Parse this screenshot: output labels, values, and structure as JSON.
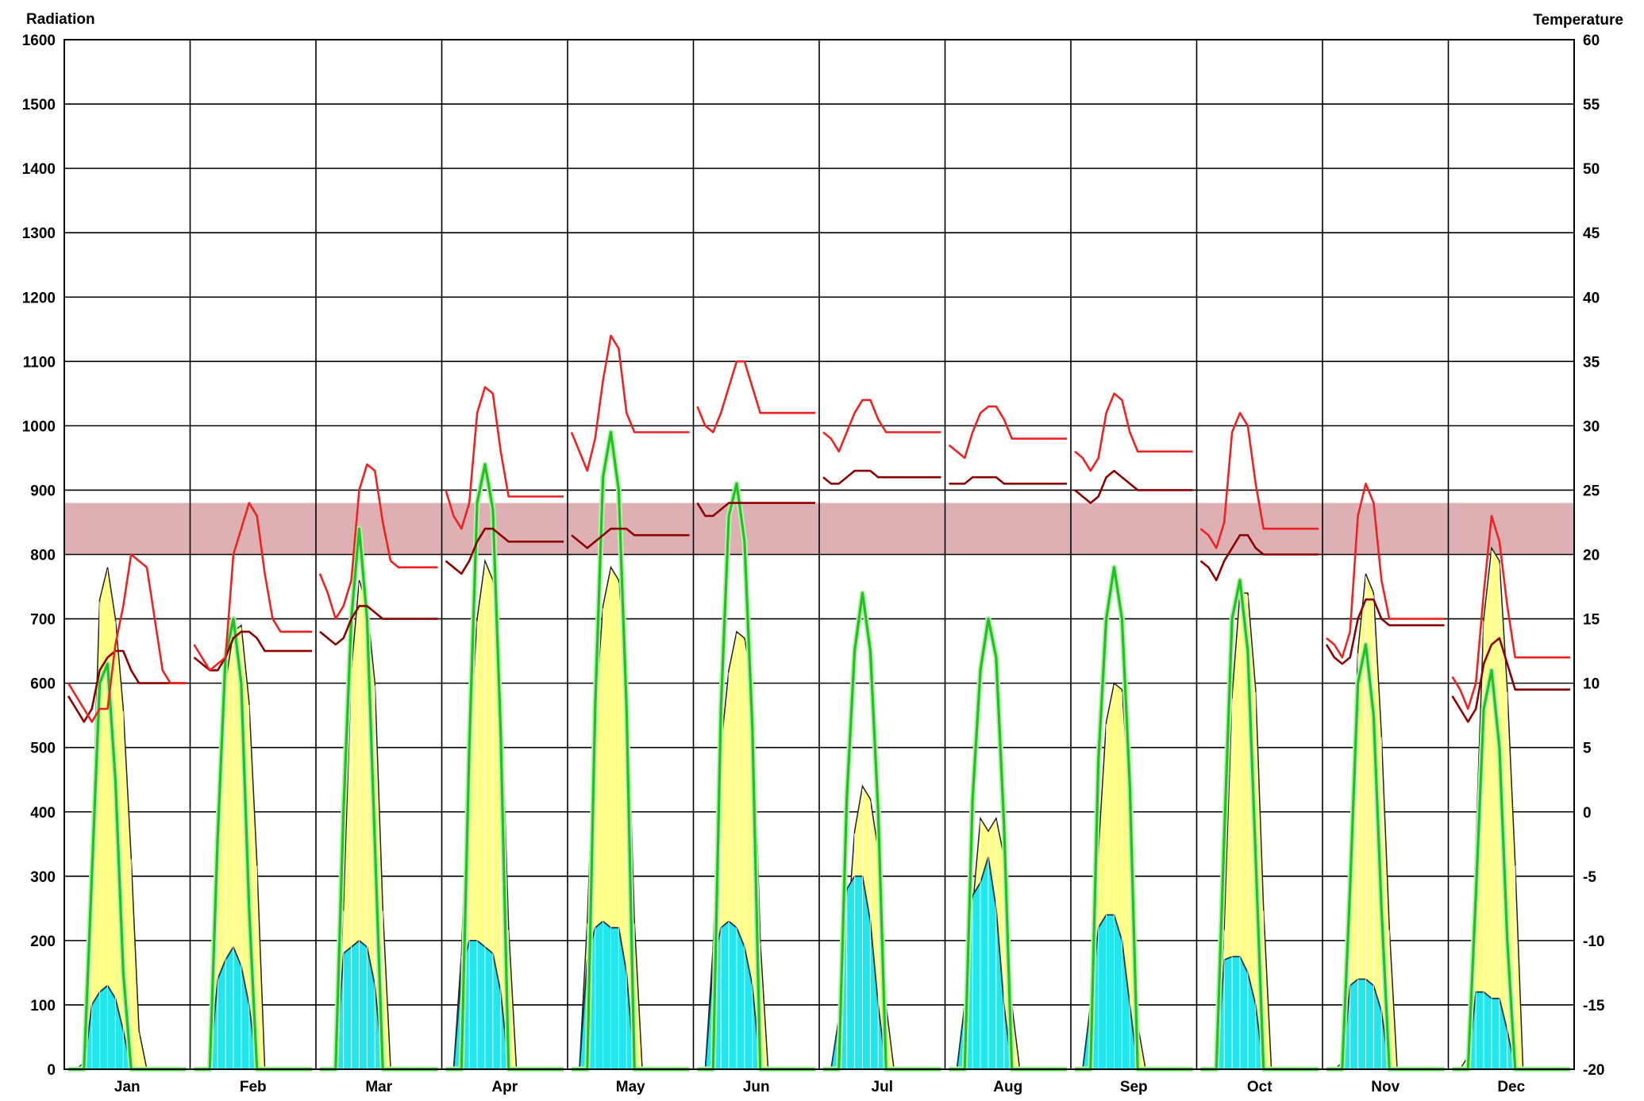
{
  "chart_data": {
    "type": "area",
    "left_axis": {
      "title": "Radiation",
      "min": 0,
      "max": 1600,
      "step": 100
    },
    "right_axis": {
      "title": "Temperature",
      "min": -20,
      "max": 60,
      "step": 5
    },
    "months": [
      "Jan",
      "Feb",
      "Mar",
      "Apr",
      "May",
      "Jun",
      "Jul",
      "Aug",
      "Sep",
      "Oct",
      "Nov",
      "Dec"
    ],
    "grid": true,
    "comfort_band": {
      "min": 20,
      "max": 24,
      "color": "#dfb0b3"
    },
    "colors": {
      "direct_radiation": "#ffff88",
      "diffuse_radiation": "#22e6ee",
      "global_radiation_line": "#22c022",
      "max_temperature": "#ee2222",
      "avg_temperature": "#8b0000"
    },
    "hours": [
      5,
      6,
      7,
      8,
      9,
      10,
      11,
      12,
      13,
      14,
      15,
      16,
      17,
      18,
      19,
      20
    ],
    "series": [
      {
        "name": "direct_radiation",
        "values": [
          [
            0,
            0,
            10,
            350,
            730,
            780,
            700,
            560,
            330,
            60,
            0,
            0,
            0,
            0,
            0,
            0
          ],
          [
            0,
            0,
            0,
            350,
            600,
            680,
            690,
            570,
            320,
            0,
            0,
            0,
            0,
            0,
            0,
            0
          ],
          [
            0,
            0,
            0,
            250,
            620,
            760,
            720,
            600,
            250,
            0,
            0,
            0,
            0,
            0,
            0,
            0
          ],
          [
            0,
            0,
            180,
            500,
            700,
            790,
            760,
            600,
            220,
            0,
            0,
            0,
            0,
            0,
            0,
            0
          ],
          [
            0,
            0,
            230,
            550,
            720,
            780,
            760,
            620,
            230,
            0,
            0,
            0,
            0,
            0,
            0,
            0
          ],
          [
            0,
            0,
            190,
            500,
            620,
            680,
            670,
            600,
            200,
            0,
            0,
            0,
            0,
            0,
            0,
            0
          ],
          [
            0,
            0,
            60,
            200,
            370,
            440,
            420,
            340,
            100,
            0,
            0,
            0,
            0,
            0,
            0,
            0
          ],
          [
            0,
            0,
            100,
            250,
            390,
            370,
            390,
            330,
            100,
            0,
            0,
            0,
            0,
            0,
            0,
            0
          ],
          [
            0,
            0,
            60,
            340,
            540,
            600,
            590,
            420,
            70,
            0,
            0,
            0,
            0,
            0,
            0,
            0
          ],
          [
            0,
            0,
            0,
            220,
            580,
            740,
            740,
            590,
            250,
            0,
            0,
            0,
            0,
            0,
            0,
            0
          ],
          [
            0,
            0,
            10,
            280,
            650,
            770,
            740,
            520,
            220,
            0,
            0,
            0,
            0,
            0,
            0,
            0
          ],
          [
            0,
            0,
            20,
            350,
            700,
            810,
            790,
            590,
            320,
            0,
            0,
            0,
            0,
            0,
            0,
            0
          ]
        ]
      },
      {
        "name": "diffuse_radiation",
        "values": [
          [
            0,
            0,
            0,
            100,
            120,
            130,
            110,
            60,
            0,
            0,
            0,
            0,
            0,
            0,
            0,
            0
          ],
          [
            0,
            0,
            0,
            140,
            170,
            190,
            160,
            100,
            0,
            0,
            0,
            0,
            0,
            0,
            0,
            0
          ],
          [
            0,
            0,
            0,
            180,
            190,
            200,
            190,
            130,
            0,
            0,
            0,
            0,
            0,
            0,
            0,
            0
          ],
          [
            0,
            0,
            150,
            200,
            200,
            190,
            180,
            120,
            0,
            0,
            0,
            0,
            0,
            0,
            0,
            0
          ],
          [
            0,
            0,
            170,
            220,
            230,
            220,
            220,
            150,
            0,
            0,
            0,
            0,
            0,
            0,
            0,
            0
          ],
          [
            0,
            0,
            160,
            220,
            230,
            220,
            190,
            130,
            0,
            0,
            0,
            0,
            0,
            0,
            0,
            0
          ],
          [
            0,
            0,
            80,
            280,
            300,
            300,
            230,
            100,
            0,
            0,
            0,
            0,
            0,
            0,
            0,
            0
          ],
          [
            0,
            0,
            100,
            270,
            290,
            330,
            250,
            100,
            0,
            0,
            0,
            0,
            0,
            0,
            0,
            0
          ],
          [
            0,
            0,
            100,
            220,
            240,
            240,
            200,
            100,
            0,
            0,
            0,
            0,
            0,
            0,
            0,
            0
          ],
          [
            0,
            0,
            0,
            170,
            175,
            175,
            150,
            100,
            0,
            0,
            0,
            0,
            0,
            0,
            0,
            0
          ],
          [
            0,
            0,
            0,
            130,
            140,
            140,
            130,
            90,
            0,
            0,
            0,
            0,
            0,
            0,
            0,
            0
          ],
          [
            0,
            0,
            0,
            120,
            120,
            110,
            110,
            60,
            0,
            0,
            0,
            0,
            0,
            0,
            0,
            0
          ]
        ]
      },
      {
        "name": "global_radiation_line",
        "values": [
          [
            0,
            0,
            0,
            300,
            600,
            630,
            450,
            150,
            0,
            0,
            0,
            0,
            0,
            0,
            0,
            0
          ],
          [
            0,
            0,
            0,
            360,
            640,
            700,
            600,
            250,
            0,
            0,
            0,
            0,
            0,
            0,
            0,
            0
          ],
          [
            0,
            0,
            0,
            400,
            700,
            840,
            700,
            350,
            0,
            0,
            0,
            0,
            0,
            0,
            0,
            0
          ],
          [
            0,
            0,
            0,
            500,
            880,
            940,
            870,
            520,
            0,
            0,
            0,
            0,
            0,
            0,
            0,
            0
          ],
          [
            0,
            0,
            0,
            560,
            920,
            990,
            900,
            560,
            0,
            0,
            0,
            0,
            0,
            0,
            0,
            0
          ],
          [
            0,
            0,
            0,
            560,
            860,
            910,
            820,
            530,
            0,
            0,
            0,
            0,
            0,
            0,
            0,
            0
          ],
          [
            0,
            0,
            0,
            420,
            650,
            740,
            650,
            400,
            0,
            0,
            0,
            0,
            0,
            0,
            0,
            0
          ],
          [
            0,
            0,
            0,
            420,
            620,
            700,
            640,
            380,
            0,
            0,
            0,
            0,
            0,
            0,
            0,
            0
          ],
          [
            0,
            0,
            0,
            480,
            700,
            780,
            700,
            440,
            0,
            0,
            0,
            0,
            0,
            0,
            0,
            0
          ],
          [
            0,
            0,
            0,
            360,
            700,
            760,
            650,
            330,
            0,
            0,
            0,
            0,
            0,
            0,
            0,
            0
          ],
          [
            0,
            0,
            0,
            280,
            600,
            660,
            550,
            250,
            0,
            0,
            0,
            0,
            0,
            0,
            0,
            0
          ],
          [
            0,
            0,
            0,
            270,
            560,
            620,
            500,
            200,
            0,
            0,
            0,
            0,
            0,
            0,
            0,
            0
          ]
        ]
      },
      {
        "name": "max_temperature",
        "values": [
          [
            10,
            9,
            8,
            7,
            8,
            8,
            13,
            16,
            20,
            19.5,
            19,
            15,
            11,
            10,
            10,
            10
          ],
          [
            13,
            12,
            11,
            11.5,
            12,
            20,
            22,
            24,
            23,
            18.5,
            15,
            14,
            14,
            14,
            14,
            14
          ],
          [
            18.5,
            17,
            15,
            16,
            18,
            25,
            27,
            26.5,
            22.5,
            19.5,
            19,
            19,
            19,
            19,
            19,
            19
          ],
          [
            25,
            23,
            22,
            24,
            31,
            33,
            32.5,
            28,
            24.5,
            24.5,
            24.5,
            24.5,
            24.5,
            24.5,
            24.5,
            24.5
          ],
          [
            29.5,
            28,
            26.5,
            29,
            33.5,
            37,
            36,
            31,
            29.5,
            29.5,
            29.5,
            29.5,
            29.5,
            29.5,
            29.5,
            29.5
          ],
          [
            31.5,
            30,
            29.5,
            31,
            33,
            35,
            35,
            33,
            31,
            31,
            31,
            31,
            31,
            31,
            31,
            31
          ],
          [
            29.5,
            29,
            28,
            29.5,
            31,
            32,
            32,
            30.5,
            29.5,
            29.5,
            29.5,
            29.5,
            29.5,
            29.5,
            29.5,
            29.5
          ],
          [
            28.5,
            28,
            27.5,
            29.5,
            31,
            31.5,
            31.5,
            30.5,
            29,
            29,
            29,
            29,
            29,
            29,
            29,
            29
          ],
          [
            28,
            27.5,
            26.5,
            27.5,
            31,
            32.5,
            32,
            29.5,
            28,
            28,
            28,
            28,
            28,
            28,
            28,
            28
          ],
          [
            22,
            21.5,
            20.5,
            22.5,
            29.5,
            31,
            30,
            25.5,
            22,
            22,
            22,
            22,
            22,
            22,
            22,
            22
          ],
          [
            13.5,
            13,
            12,
            14,
            23,
            25.5,
            24,
            18,
            15,
            15,
            15,
            15,
            15,
            15,
            15,
            15
          ],
          [
            10.5,
            9.5,
            8,
            10,
            17,
            23,
            21,
            16,
            12,
            12,
            12,
            12,
            12,
            12,
            12,
            12
          ]
        ]
      },
      {
        "name": "avg_temperature",
        "values": [
          [
            9,
            8,
            7,
            8,
            11,
            12,
            12.5,
            12.5,
            11,
            10,
            10,
            10,
            10,
            10,
            10,
            10
          ],
          [
            12,
            11.5,
            11,
            11,
            12,
            13.5,
            14,
            14,
            13.5,
            12.5,
            12.5,
            12.5,
            12.5,
            12.5,
            12.5,
            12.5
          ],
          [
            14,
            13.5,
            13,
            13.5,
            15,
            16,
            16,
            15.5,
            15,
            15,
            15,
            15,
            15,
            15,
            15,
            15
          ],
          [
            19.5,
            19,
            18.5,
            19.5,
            21,
            22,
            22,
            21.5,
            21,
            21,
            21,
            21,
            21,
            21,
            21,
            21
          ],
          [
            21.5,
            21,
            20.5,
            21,
            21.5,
            22,
            22,
            22,
            21.5,
            21.5,
            21.5,
            21.5,
            21.5,
            21.5,
            21.5,
            21.5
          ],
          [
            24,
            23,
            23,
            23.5,
            24,
            24,
            24,
            24,
            24,
            24,
            24,
            24,
            24,
            24,
            24,
            24
          ],
          [
            26,
            25.5,
            25.5,
            26,
            26.5,
            26.5,
            26.5,
            26,
            26,
            26,
            26,
            26,
            26,
            26,
            26,
            26
          ],
          [
            25.5,
            25.5,
            25.5,
            26,
            26,
            26,
            26,
            25.5,
            25.5,
            25.5,
            25.5,
            25.5,
            25.5,
            25.5,
            25.5,
            25.5
          ],
          [
            25,
            24.5,
            24,
            24.5,
            26,
            26.5,
            26,
            25.5,
            25,
            25,
            25,
            25,
            25,
            25,
            25,
            25
          ],
          [
            19.5,
            19,
            18,
            19.5,
            20.5,
            21.5,
            21.5,
            20.5,
            20,
            20,
            20,
            20,
            20,
            20,
            20,
            20
          ],
          [
            13,
            12,
            11.5,
            12,
            15,
            16.5,
            16.5,
            15,
            14.5,
            14.5,
            14.5,
            14.5,
            14.5,
            14.5,
            14.5,
            14.5
          ],
          [
            9,
            8,
            7,
            8,
            11.5,
            13,
            13.5,
            11.5,
            9.5,
            9.5,
            9.5,
            9.5,
            9.5,
            9.5,
            9.5,
            9.5
          ]
        ]
      }
    ]
  }
}
